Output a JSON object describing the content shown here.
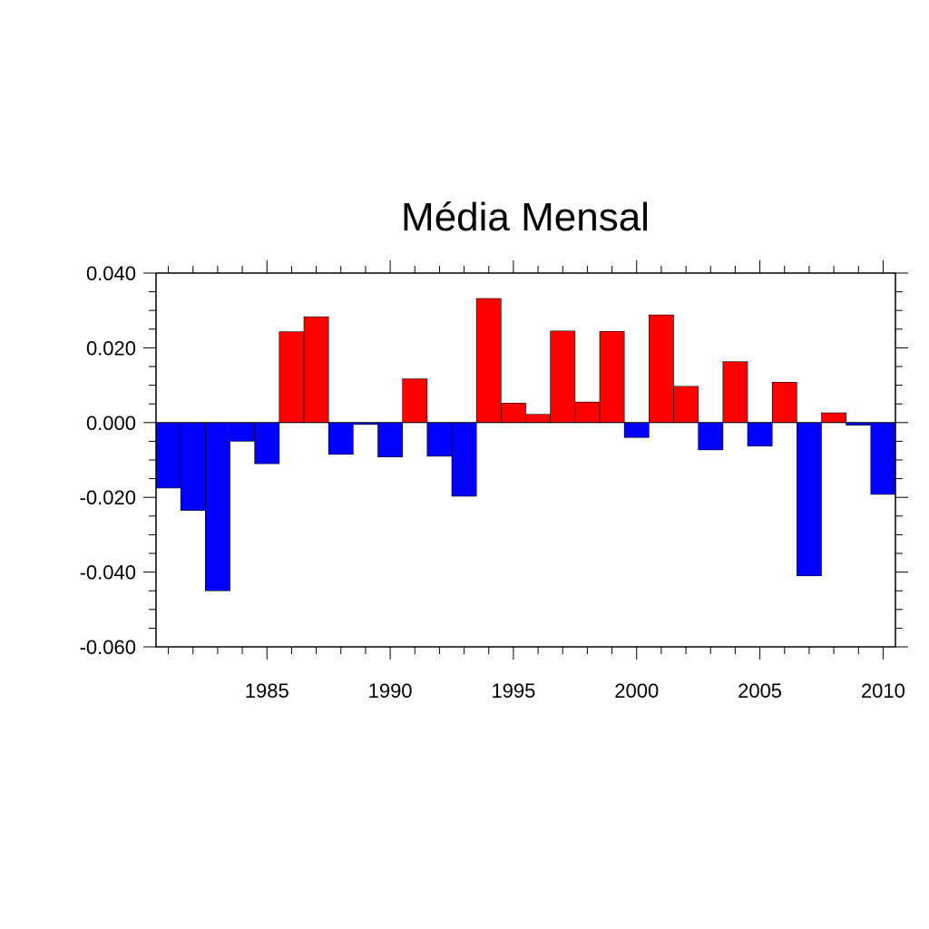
{
  "chart_data": {
    "type": "bar",
    "title": "Média Mensal",
    "xlabel": "",
    "ylabel": "",
    "x": [
      1981,
      1982,
      1983,
      1984,
      1985,
      1986,
      1987,
      1988,
      1989,
      1990,
      1991,
      1992,
      1993,
      1994,
      1995,
      1996,
      1997,
      1998,
      1999,
      2000,
      2001,
      2002,
      2003,
      2004,
      2005,
      2006,
      2007,
      2008,
      2009,
      2010
    ],
    "values": [
      -0.0175,
      -0.0235,
      -0.045,
      -0.005,
      -0.011,
      0.0243,
      0.0283,
      -0.0085,
      -0.0005,
      -0.0092,
      0.0117,
      -0.009,
      -0.0197,
      0.0332,
      0.0052,
      0.0022,
      0.0245,
      0.0055,
      0.0244,
      -0.004,
      0.0288,
      0.0097,
      -0.0073,
      0.0163,
      -0.0063,
      0.0108,
      -0.041,
      0.0026,
      -0.0007,
      -0.0192
    ],
    "ylim": [
      -0.06,
      0.04
    ],
    "xlim": [
      1980.5,
      2010.5
    ],
    "yticks": [
      -0.06,
      -0.04,
      -0.02,
      0.0,
      0.02,
      0.04
    ],
    "ytick_labels": [
      "-0.060",
      "-0.040",
      "-0.020",
      "0.000",
      "0.020",
      "0.040"
    ],
    "xticks": [
      1985,
      1990,
      1995,
      2000,
      2005,
      2010
    ],
    "xtick_labels": [
      "1985",
      "1990",
      "1995",
      "2000",
      "2005",
      "2010"
    ],
    "colors": {
      "positive": "#ff0000",
      "negative": "#0000ff"
    },
    "grid": false,
    "legend": "none"
  }
}
